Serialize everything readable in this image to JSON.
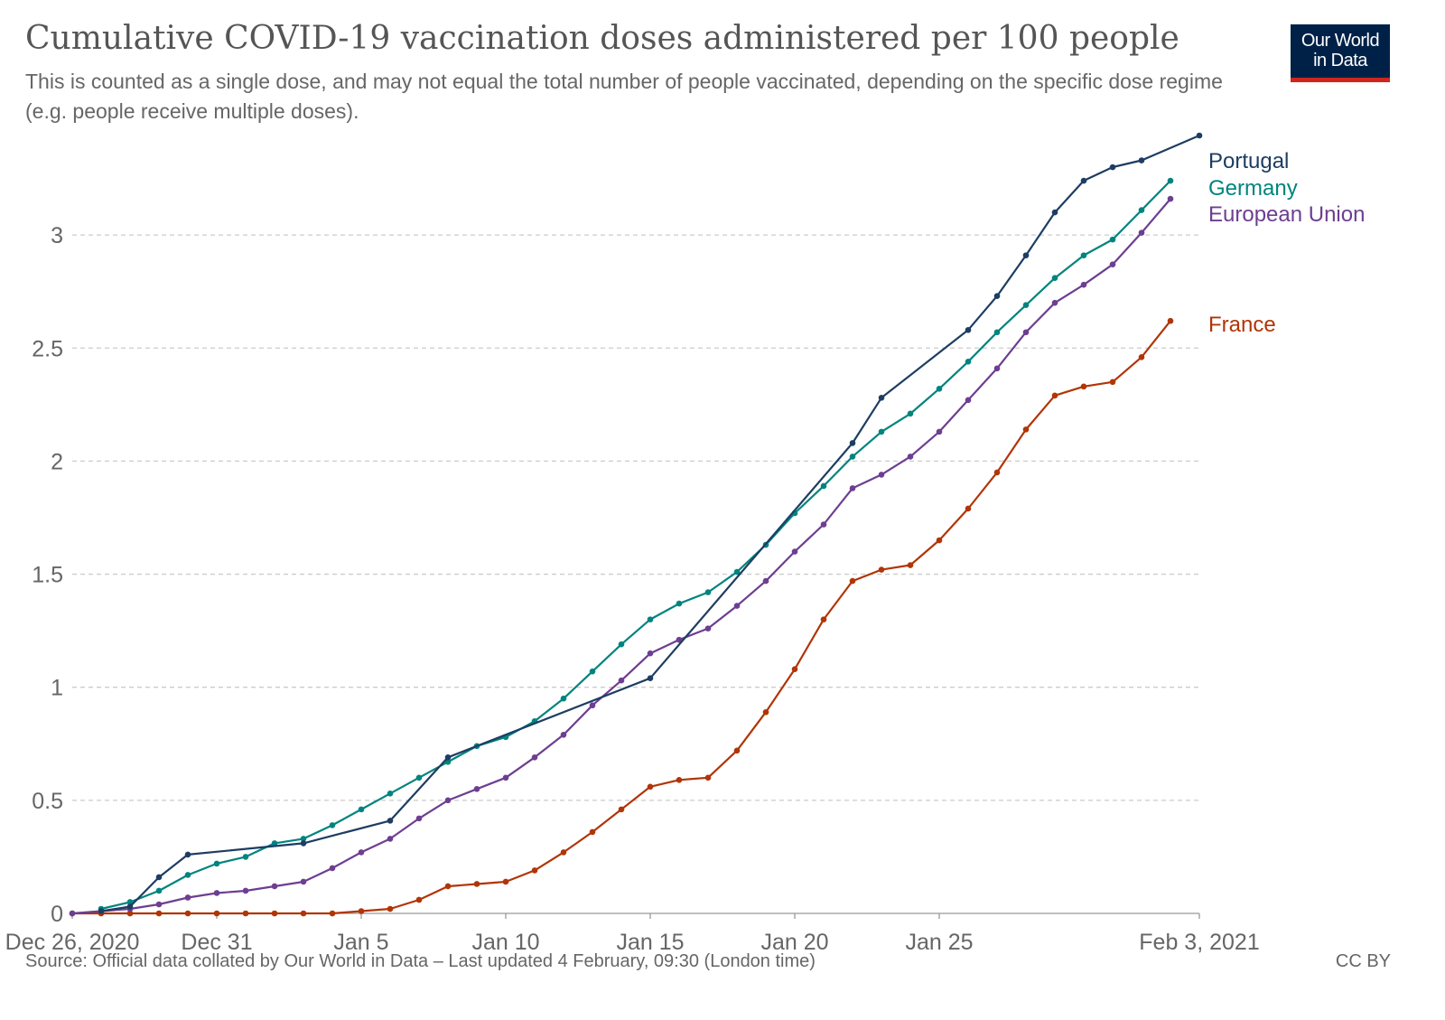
{
  "header": {
    "title": "Cumulative COVID-19 vaccination doses administered per 100 people",
    "subtitle": "This is counted as a single dose, and may not equal the total number of people vaccinated, depending on the specific dose regime (e.g. people receive multiple doses).",
    "logo_line1": "Our World",
    "logo_line2": "in Data"
  },
  "footer": {
    "source": "Source: Official data collated by Our World in Data – Last updated 4 February, 09:30 (London time)",
    "license": "CC BY"
  },
  "chart_data": {
    "type": "line",
    "title": "Cumulative COVID-19 vaccination doses administered per 100 people",
    "xlabel": "",
    "ylabel": "",
    "x_domain": [
      "2020-12-26",
      "2021-02-03"
    ],
    "ylim": [
      0,
      3.4
    ],
    "y_ticks": [
      0,
      0.5,
      1,
      1.5,
      2,
      2.5,
      3
    ],
    "y_tick_labels": [
      "0",
      "0.5",
      "1",
      "1.5",
      "2",
      "2.5",
      "3"
    ],
    "x_ticks": [
      {
        "date": "2020-12-26",
        "label": "Dec 26, 2020"
      },
      {
        "date": "2020-12-31",
        "label": "Dec 31"
      },
      {
        "date": "2021-01-05",
        "label": "Jan 5"
      },
      {
        "date": "2021-01-10",
        "label": "Jan 10"
      },
      {
        "date": "2021-01-15",
        "label": "Jan 15"
      },
      {
        "date": "2021-01-20",
        "label": "Jan 20"
      },
      {
        "date": "2021-01-25",
        "label": "Jan 25"
      },
      {
        "date": "2021-02-03",
        "label": "Feb 3, 2021"
      }
    ],
    "grid": "horizontal dashed",
    "legend": "right, labels at line ends",
    "series": [
      {
        "name": "Portugal",
        "color": "#1d3d63",
        "points": [
          [
            "2020-12-27",
            0.01
          ],
          [
            "2020-12-28",
            0.03
          ],
          [
            "2020-12-29",
            0.16
          ],
          [
            "2020-12-30",
            0.26
          ],
          [
            "2021-01-03",
            0.31
          ],
          [
            "2021-01-06",
            0.41
          ],
          [
            "2021-01-08",
            0.69
          ],
          [
            "2021-01-15",
            1.04
          ],
          [
            "2021-01-22",
            2.08
          ],
          [
            "2021-01-23",
            2.28
          ],
          [
            "2021-01-26",
            2.58
          ],
          [
            "2021-01-27",
            2.73
          ],
          [
            "2021-01-28",
            2.91
          ],
          [
            "2021-01-29",
            3.1
          ],
          [
            "2021-01-30",
            3.24
          ],
          [
            "2021-01-31",
            3.3
          ],
          [
            "2021-02-01",
            3.33
          ],
          [
            "2021-02-03",
            3.44
          ]
        ]
      },
      {
        "name": "Germany",
        "color": "#00847e",
        "points": [
          [
            "2020-12-27",
            0.02
          ],
          [
            "2020-12-28",
            0.05
          ],
          [
            "2020-12-29",
            0.1
          ],
          [
            "2020-12-30",
            0.17
          ],
          [
            "2020-12-31",
            0.22
          ],
          [
            "2021-01-01",
            0.25
          ],
          [
            "2021-01-02",
            0.31
          ],
          [
            "2021-01-03",
            0.33
          ],
          [
            "2021-01-04",
            0.39
          ],
          [
            "2021-01-05",
            0.46
          ],
          [
            "2021-01-06",
            0.53
          ],
          [
            "2021-01-07",
            0.6
          ],
          [
            "2021-01-08",
            0.67
          ],
          [
            "2021-01-09",
            0.74
          ],
          [
            "2021-01-10",
            0.78
          ],
          [
            "2021-01-11",
            0.85
          ],
          [
            "2021-01-12",
            0.95
          ],
          [
            "2021-01-13",
            1.07
          ],
          [
            "2021-01-14",
            1.19
          ],
          [
            "2021-01-15",
            1.3
          ],
          [
            "2021-01-16",
            1.37
          ],
          [
            "2021-01-17",
            1.42
          ],
          [
            "2021-01-18",
            1.51
          ],
          [
            "2021-01-19",
            1.63
          ],
          [
            "2021-01-20",
            1.77
          ],
          [
            "2021-01-21",
            1.89
          ],
          [
            "2021-01-22",
            2.02
          ],
          [
            "2021-01-23",
            2.13
          ],
          [
            "2021-01-24",
            2.21
          ],
          [
            "2021-01-25",
            2.32
          ],
          [
            "2021-01-26",
            2.44
          ],
          [
            "2021-01-27",
            2.57
          ],
          [
            "2021-01-28",
            2.69
          ],
          [
            "2021-01-29",
            2.81
          ],
          [
            "2021-01-30",
            2.91
          ],
          [
            "2021-01-31",
            2.98
          ],
          [
            "2021-02-01",
            3.11
          ],
          [
            "2021-02-02",
            3.24
          ]
        ]
      },
      {
        "name": "European Union",
        "color": "#6d3e91",
        "points": [
          [
            "2020-12-26",
            0.0
          ],
          [
            "2020-12-27",
            0.01
          ],
          [
            "2020-12-28",
            0.02
          ],
          [
            "2020-12-29",
            0.04
          ],
          [
            "2020-12-30",
            0.07
          ],
          [
            "2020-12-31",
            0.09
          ],
          [
            "2021-01-01",
            0.1
          ],
          [
            "2021-01-02",
            0.12
          ],
          [
            "2021-01-03",
            0.14
          ],
          [
            "2021-01-04",
            0.2
          ],
          [
            "2021-01-05",
            0.27
          ],
          [
            "2021-01-06",
            0.33
          ],
          [
            "2021-01-07",
            0.42
          ],
          [
            "2021-01-08",
            0.5
          ],
          [
            "2021-01-09",
            0.55
          ],
          [
            "2021-01-10",
            0.6
          ],
          [
            "2021-01-11",
            0.69
          ],
          [
            "2021-01-12",
            0.79
          ],
          [
            "2021-01-13",
            0.92
          ],
          [
            "2021-01-14",
            1.03
          ],
          [
            "2021-01-15",
            1.15
          ],
          [
            "2021-01-16",
            1.21
          ],
          [
            "2021-01-17",
            1.26
          ],
          [
            "2021-01-18",
            1.36
          ],
          [
            "2021-01-19",
            1.47
          ],
          [
            "2021-01-20",
            1.6
          ],
          [
            "2021-01-21",
            1.72
          ],
          [
            "2021-01-22",
            1.88
          ],
          [
            "2021-01-23",
            1.94
          ],
          [
            "2021-01-24",
            2.02
          ],
          [
            "2021-01-25",
            2.13
          ],
          [
            "2021-01-26",
            2.27
          ],
          [
            "2021-01-27",
            2.41
          ],
          [
            "2021-01-28",
            2.57
          ],
          [
            "2021-01-29",
            2.7
          ],
          [
            "2021-01-30",
            2.78
          ],
          [
            "2021-01-31",
            2.87
          ],
          [
            "2021-02-01",
            3.01
          ],
          [
            "2021-02-02",
            3.16
          ]
        ]
      },
      {
        "name": "France",
        "color": "#b13507",
        "points": [
          [
            "2020-12-26",
            0.0
          ],
          [
            "2020-12-27",
            0.0
          ],
          [
            "2020-12-28",
            0.0
          ],
          [
            "2020-12-29",
            0.0
          ],
          [
            "2020-12-30",
            0.0
          ],
          [
            "2020-12-31",
            0.0
          ],
          [
            "2021-01-01",
            0.0
          ],
          [
            "2021-01-02",
            0.0
          ],
          [
            "2021-01-03",
            0.0
          ],
          [
            "2021-01-04",
            0.0
          ],
          [
            "2021-01-05",
            0.01
          ],
          [
            "2021-01-06",
            0.02
          ],
          [
            "2021-01-07",
            0.06
          ],
          [
            "2021-01-08",
            0.12
          ],
          [
            "2021-01-09",
            0.13
          ],
          [
            "2021-01-10",
            0.14
          ],
          [
            "2021-01-11",
            0.19
          ],
          [
            "2021-01-12",
            0.27
          ],
          [
            "2021-01-13",
            0.36
          ],
          [
            "2021-01-14",
            0.46
          ],
          [
            "2021-01-15",
            0.56
          ],
          [
            "2021-01-16",
            0.59
          ],
          [
            "2021-01-17",
            0.6
          ],
          [
            "2021-01-18",
            0.72
          ],
          [
            "2021-01-19",
            0.89
          ],
          [
            "2021-01-20",
            1.08
          ],
          [
            "2021-01-21",
            1.3
          ],
          [
            "2021-01-22",
            1.47
          ],
          [
            "2021-01-23",
            1.52
          ],
          [
            "2021-01-24",
            1.54
          ],
          [
            "2021-01-25",
            1.65
          ],
          [
            "2021-01-26",
            1.79
          ],
          [
            "2021-01-27",
            1.95
          ],
          [
            "2021-01-28",
            2.14
          ],
          [
            "2021-01-29",
            2.29
          ],
          [
            "2021-01-30",
            2.33
          ],
          [
            "2021-01-31",
            2.35
          ],
          [
            "2021-02-01",
            2.46
          ],
          [
            "2021-02-02",
            2.62
          ]
        ]
      }
    ]
  }
}
